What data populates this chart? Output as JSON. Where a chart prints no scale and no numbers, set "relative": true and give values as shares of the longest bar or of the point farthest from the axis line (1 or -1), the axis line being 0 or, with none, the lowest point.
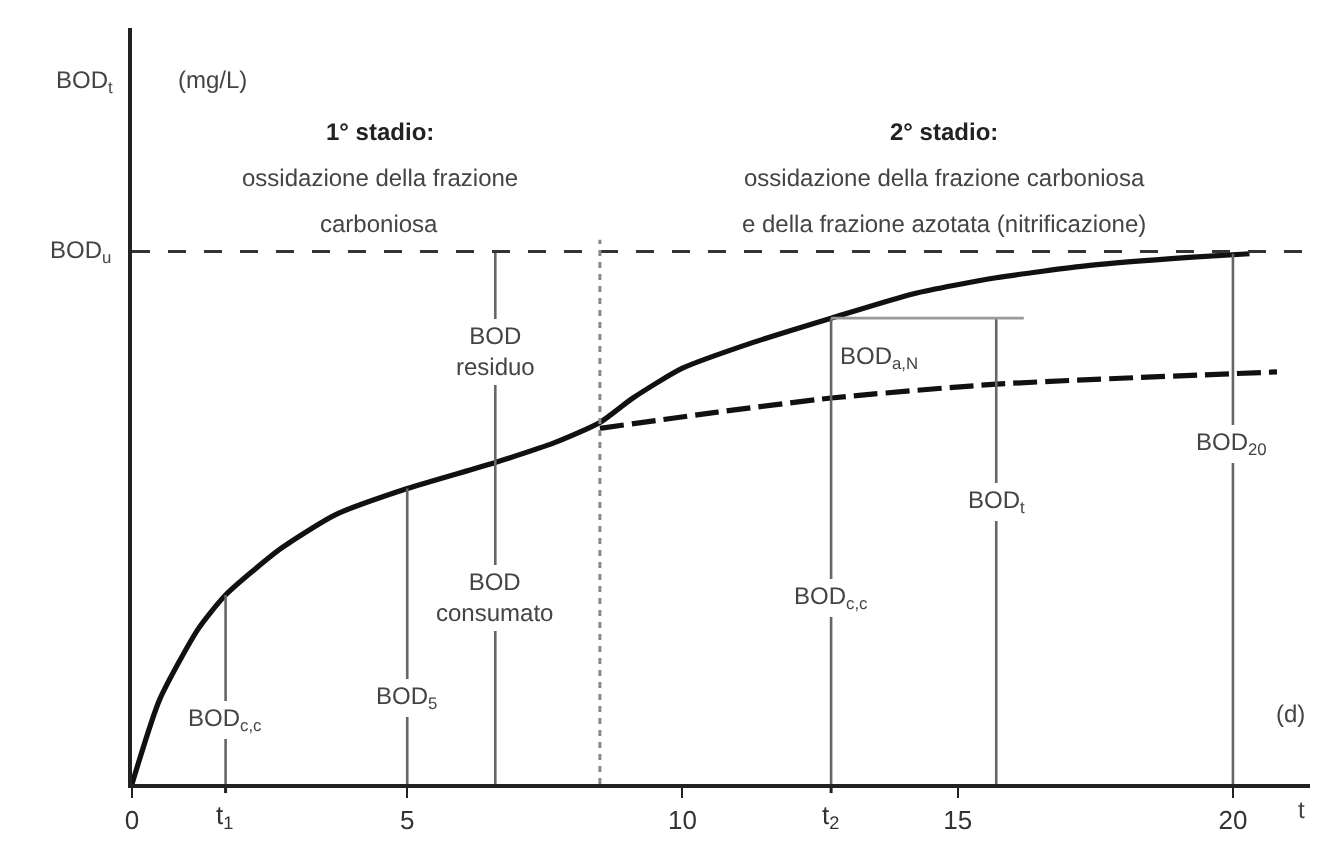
{
  "chart_data": {
    "type": "line",
    "relative": true,
    "xlabel": "t",
    "xlim": [
      0,
      21.4
    ],
    "xticks": [
      0,
      5,
      10,
      15,
      20
    ],
    "grid": false,
    "marker": "none",
    "series": [
      {
        "color": "#111111",
        "line_style": "solid",
        "x": [
          0,
          0.5,
          1.2,
          1.7,
          2.7,
          3.7,
          5,
          6.6,
          7.7,
          8.5,
          9.1,
          10,
          11.3,
          12.7,
          14.2,
          15.7,
          17.4,
          19.2,
          20.3
        ],
        "values": [
          0,
          0.158,
          0.291,
          0.355,
          0.442,
          0.506,
          0.555,
          0.604,
          0.642,
          0.679,
          0.725,
          0.781,
          0.83,
          0.875,
          0.921,
          0.951,
          0.974,
          0.989,
          0.996
        ]
      },
      {
        "color": "#111111",
        "line_style": "dashed",
        "x": [
          8.5,
          10.6,
          12.7,
          15.7,
          20.8
        ],
        "values": [
          0.668,
          0.698,
          0.725,
          0.751,
          0.774
        ]
      },
      {
        "color": "#666666",
        "line_style": "solid",
        "x": [
          1.7,
          1.7
        ],
        "values": [
          0,
          0.355
        ]
      },
      {
        "color": "#666666",
        "line_style": "solid",
        "x": [
          5,
          5
        ],
        "values": [
          0,
          0.555
        ]
      },
      {
        "color": "#666666",
        "line_style": "solid",
        "x": [
          6.6,
          6.6
        ],
        "values": [
          0,
          1
        ]
      },
      {
        "color": "#666666",
        "line_style": "solid",
        "x": [
          12.7,
          12.7
        ],
        "values": [
          0,
          0.875
        ]
      },
      {
        "color": "#666666",
        "line_style": "solid",
        "x": [
          15.7,
          15.7
        ],
        "values": [
          0,
          0.875
        ]
      },
      {
        "color": "#999999",
        "line_style": "solid",
        "x": [
          12.7,
          16.2
        ],
        "values": [
          0.875,
          0.875
        ]
      },
      {
        "color": "#666666",
        "line_style": "solid",
        "x": [
          20,
          20
        ],
        "values": [
          0,
          0.996
        ]
      }
    ],
    "ref_lines": [
      {
        "axis": "y",
        "value": 1,
        "label": "BOD$_{u}$",
        "color": "#333333",
        "line_style": "dashed"
      },
      {
        "axis": "x",
        "value": 8.5,
        "label": null,
        "color": "#888888",
        "line_style": "dotted"
      }
    ],
    "annotations": [
      "1° stadio:",
      "ossidazione della frazione",
      "carboniosa",
      "2° stadio:",
      "ossidazione della frazione carboniosa",
      "e della frazione azotata (nitrificazione)",
      "(mg/L)",
      "(d)",
      "BOD$_{t}$",
      {
        "text": "t$_{1}$",
        "x": 1.7,
        "y": 0
      },
      {
        "text": "t$_{2}$",
        "x": 12.7,
        "y": 0
      },
      {
        "text": "BOD$_{c,c}$",
        "x": 1.7,
        "y": 0.12
      },
      {
        "text": "BOD$_{5}$",
        "x": 5,
        "y": 0.16
      },
      {
        "text": "BOD\nconsumato",
        "x": 6.6,
        "y": 0.35
      },
      {
        "text": "BOD\nresiduo",
        "x": 6.6,
        "y": 0.81
      },
      {
        "text": "BOD$_{c,c}$",
        "x": 12.7,
        "y": 0.35
      },
      {
        "text": "BOD$_{a,N}$",
        "x": 12.8,
        "y": 0.8
      },
      {
        "text": "BOD$_{t}$",
        "x": 15.7,
        "y": 0.53
      },
      {
        "text": "BOD$_{20}$",
        "x": 20,
        "y": 0.64
      }
    ]
  }
}
